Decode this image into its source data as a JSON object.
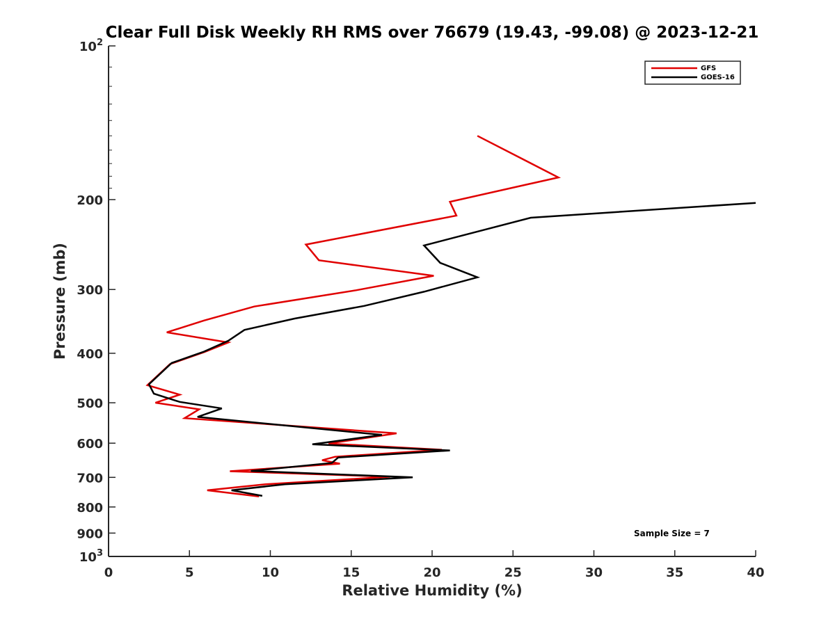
{
  "chart_data": {
    "type": "line",
    "title": "Clear Full Disk Weekly RH RMS over 76679 (19.43, -99.08) @ 2023-12-21",
    "xlabel": "Relative Humidity (%)",
    "ylabel": "Pressure (mb)",
    "xlim": [
      0,
      40
    ],
    "ylim": [
      100,
      1000
    ],
    "y_scale": "log",
    "y_reversed": true,
    "x_ticks": [
      0,
      5,
      10,
      15,
      20,
      25,
      30,
      35,
      40
    ],
    "y_ticks": [
      {
        "value": 100,
        "label": "10",
        "sup": "2"
      },
      {
        "value": 200,
        "label": "200"
      },
      {
        "value": 300,
        "label": "300"
      },
      {
        "value": 400,
        "label": "400"
      },
      {
        "value": 500,
        "label": "500"
      },
      {
        "value": 600,
        "label": "600"
      },
      {
        "value": 700,
        "label": "700"
      },
      {
        "value": 800,
        "label": "800"
      },
      {
        "value": 900,
        "label": "900"
      },
      {
        "value": 1000,
        "label": "10",
        "sup": "3"
      }
    ],
    "grid": false,
    "legend_position": "top-right",
    "series": [
      {
        "name": "GFS",
        "color": "#e00000",
        "x": [
          22.8,
          27.8,
          21.1,
          21.5,
          12.2,
          13.0,
          20.1,
          15.3,
          9.0,
          5.9,
          3.6,
          7.4,
          5.9,
          3.8,
          2.4,
          4.4,
          2.9,
          5.6,
          4.7,
          17.8,
          13.6,
          20.6,
          14.0,
          13.2,
          14.3,
          7.5,
          17.4,
          9.7,
          6.1,
          9.3
        ],
        "y": [
          150,
          181,
          202,
          215,
          245,
          263,
          282,
          301,
          324,
          345,
          364,
          381,
          398,
          420,
          462,
          482,
          500,
          515,
          536,
          574,
          601,
          618,
          638,
          648,
          658,
          681,
          698,
          722,
          742,
          763
        ]
      },
      {
        "name": "GOES-16",
        "color": "#000000",
        "x": [
          40.0,
          26.1,
          19.5,
          20.5,
          22.8,
          19.5,
          15.8,
          11.5,
          8.4,
          7.4,
          5.9,
          3.9,
          2.5,
          2.8,
          4.4,
          7.0,
          5.5,
          16.9,
          12.6,
          21.1,
          14.2,
          13.8,
          8.8,
          18.8,
          10.9,
          7.6,
          9.5
        ],
        "y": [
          203,
          217,
          246,
          266,
          284,
          303,
          323,
          342,
          360,
          378,
          397,
          418,
          460,
          480,
          498,
          513,
          533,
          578,
          603,
          620,
          640,
          656,
          680,
          700,
          722,
          742,
          761
        ]
      }
    ],
    "annotations": [
      "Sample Size = 7"
    ]
  }
}
